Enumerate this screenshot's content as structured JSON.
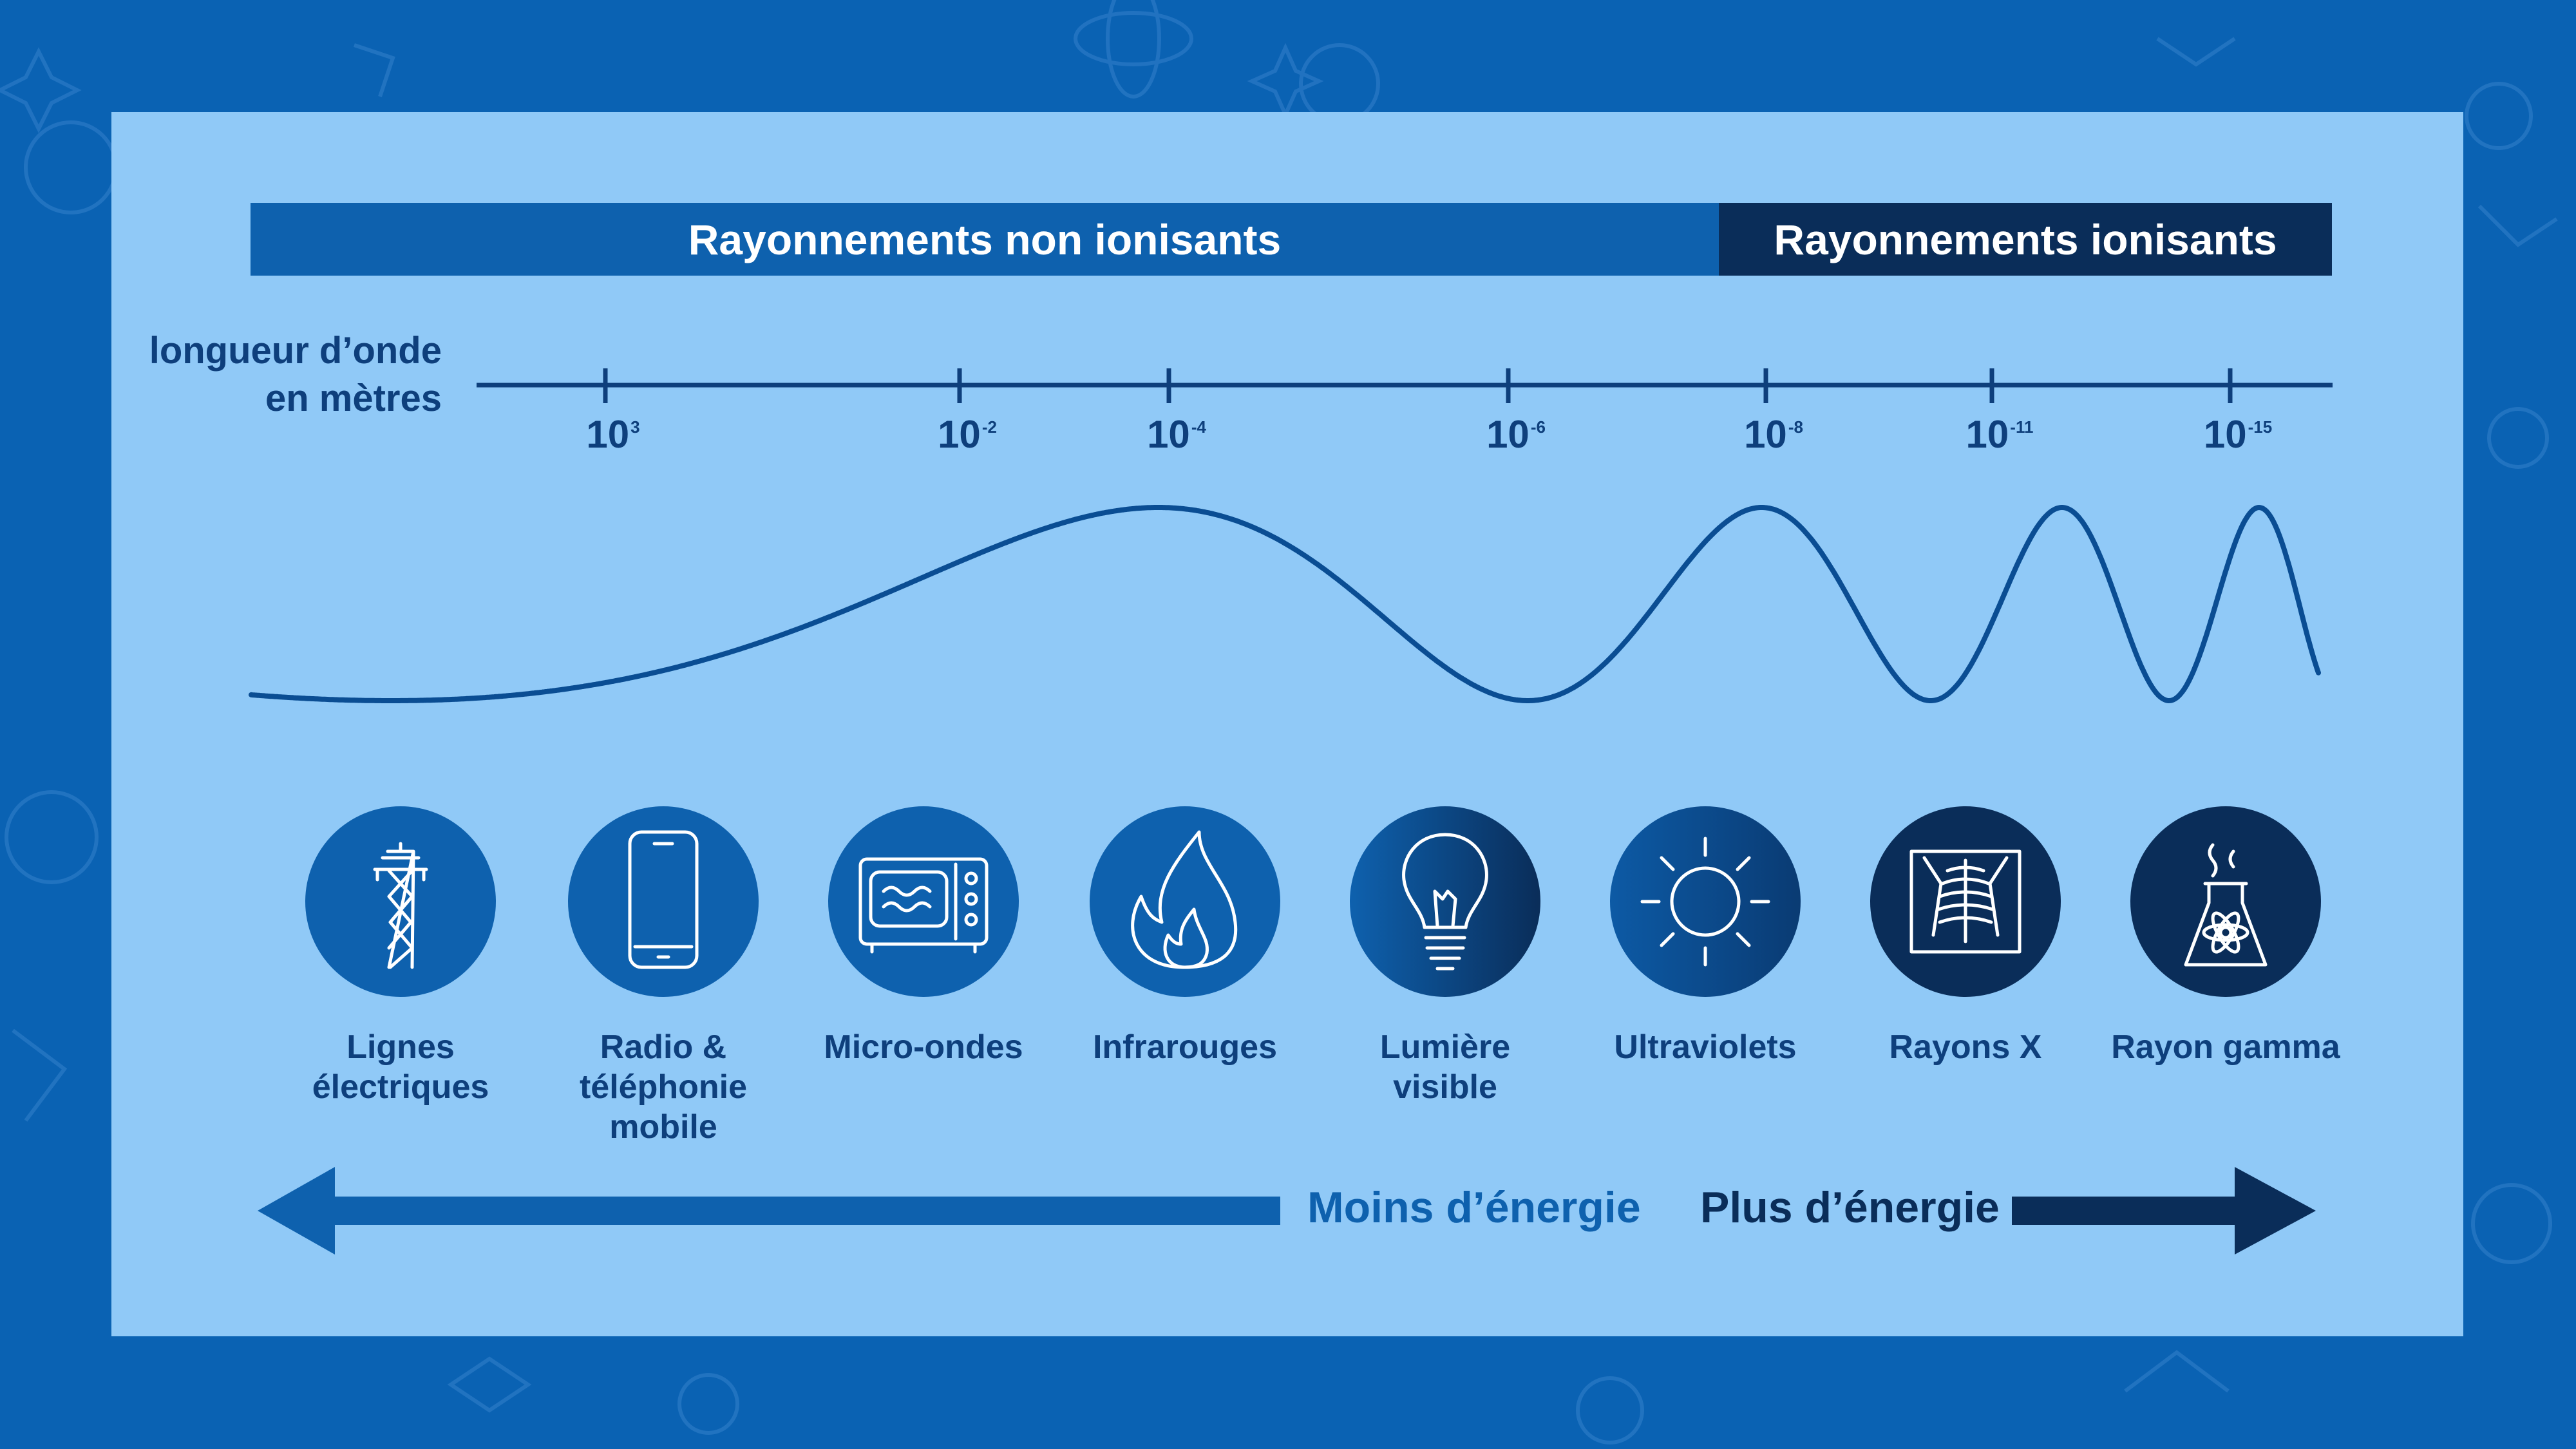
{
  "bands": {
    "non_ionizing": "Rayonnements non ionisants",
    "ionizing": "Rayonnements ionisants"
  },
  "wavelength_label": {
    "line1": "longueur d’onde",
    "line2": "en mètres"
  },
  "ticks": [
    {
      "base": "10",
      "exp": "3"
    },
    {
      "base": "10",
      "exp": "-2"
    },
    {
      "base": "10",
      "exp": "-4"
    },
    {
      "base": "10",
      "exp": "-6"
    },
    {
      "base": "10",
      "exp": "-8"
    },
    {
      "base": "10",
      "exp": "-11"
    },
    {
      "base": "10",
      "exp": "-15"
    }
  ],
  "categories": [
    {
      "line1": "Lignes",
      "line2": "électriques",
      "icon": "power-pylon-icon"
    },
    {
      "line1": "Radio &",
      "line2": "téléphonie mobile",
      "icon": "smartphone-icon"
    },
    {
      "line1": "Micro-ondes",
      "line2": "",
      "icon": "microwave-icon"
    },
    {
      "line1": "Infrarouges",
      "line2": "",
      "icon": "flame-icon"
    },
    {
      "line1": "Lumière",
      "line2": "visible",
      "icon": "light-bulb-icon"
    },
    {
      "line1": "Ultraviolets",
      "line2": "",
      "icon": "sun-icon"
    },
    {
      "line1": "Rayons X",
      "line2": "",
      "icon": "x-ray-chest-icon"
    },
    {
      "line1": "Rayon gamma",
      "line2": "",
      "icon": "nuclear-plant-icon"
    }
  ],
  "energy": {
    "less": "Moins d’énergie",
    "more": "Plus d’énergie"
  },
  "colors": {
    "background": "#0a62b3",
    "panel": "#90c9f7",
    "non_ionizing": "#0e61ae",
    "ionizing": "#0a2d59",
    "text": "#0e3f7c"
  }
}
